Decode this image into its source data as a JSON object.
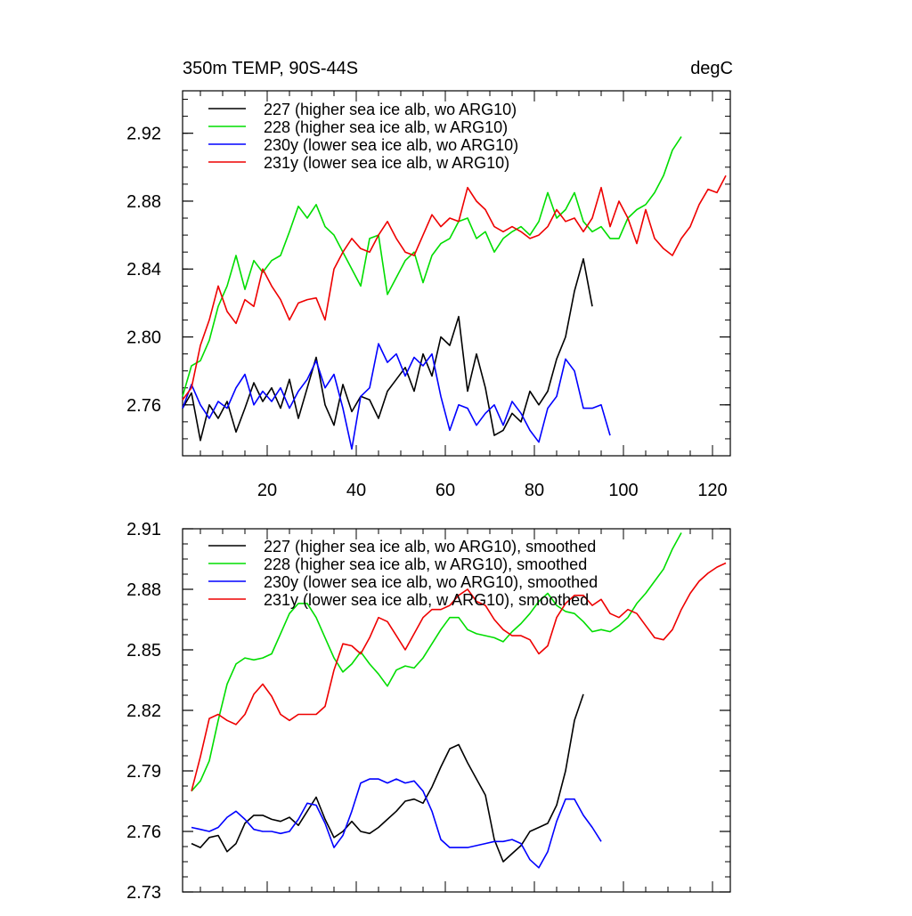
{
  "chart_data": [
    {
      "type": "line",
      "title_left": "350m TEMP, 90S-44S",
      "title_right": "degC",
      "xlim": [
        1,
        124
      ],
      "ylim": [
        2.73,
        2.945
      ],
      "xticks": [
        20,
        40,
        60,
        80,
        100,
        120
      ],
      "xtick_labels": [
        "20",
        "40",
        "60",
        "80",
        "100",
        "120"
      ],
      "yticks": [
        2.76,
        2.8,
        2.84,
        2.88,
        2.92
      ],
      "ytick_labels": [
        "2.76",
        "2.80",
        "2.84",
        "2.88",
        "2.92"
      ],
      "legend_placement": "top-left",
      "series": [
        {
          "name": "227 (higher sea ice alb, wo ARG10)",
          "color": "#000000",
          "x": [
            1,
            3,
            5,
            7,
            9,
            11,
            13,
            15,
            17,
            19,
            21,
            23,
            25,
            27,
            29,
            31,
            33,
            35,
            37,
            39,
            41,
            43,
            45,
            47,
            49,
            51,
            53,
            55,
            57,
            59,
            61,
            63,
            65,
            67,
            69,
            71,
            73,
            75,
            77,
            79,
            81,
            83,
            85,
            87,
            89,
            91,
            93
          ],
          "y": [
            2.758,
            2.767,
            2.739,
            2.76,
            2.752,
            2.762,
            2.744,
            2.758,
            2.773,
            2.762,
            2.77,
            2.758,
            2.775,
            2.752,
            2.77,
            2.788,
            2.76,
            2.748,
            2.772,
            2.756,
            2.765,
            2.763,
            2.752,
            2.768,
            2.775,
            2.782,
            2.768,
            2.79,
            2.777,
            2.8,
            2.795,
            2.812,
            2.768,
            2.79,
            2.77,
            2.742,
            2.745,
            2.755,
            2.75,
            2.768,
            2.76,
            2.768,
            2.787,
            2.8,
            2.827,
            2.846,
            2.818
          ]
        },
        {
          "name": "228 (higher sea ice alb, w ARG10)",
          "color": "#00dd00",
          "x": [
            1,
            3,
            5,
            7,
            9,
            11,
            13,
            15,
            17,
            19,
            21,
            23,
            25,
            27,
            29,
            31,
            33,
            35,
            37,
            39,
            41,
            43,
            45,
            47,
            49,
            51,
            53,
            55,
            57,
            59,
            61,
            63,
            65,
            67,
            69,
            71,
            73,
            75,
            77,
            79,
            81,
            83,
            85,
            87,
            89,
            91,
            93,
            95,
            97,
            99,
            101,
            103,
            105,
            107,
            109,
            111,
            113
          ],
          "y": [
            2.765,
            2.783,
            2.786,
            2.798,
            2.818,
            2.83,
            2.848,
            2.828,
            2.845,
            2.838,
            2.845,
            2.848,
            2.862,
            2.877,
            2.87,
            2.878,
            2.865,
            2.86,
            2.85,
            2.84,
            2.83,
            2.858,
            2.86,
            2.825,
            2.835,
            2.845,
            2.85,
            2.832,
            2.848,
            2.855,
            2.858,
            2.868,
            2.87,
            2.858,
            2.862,
            2.85,
            2.858,
            2.862,
            2.865,
            2.86,
            2.868,
            2.885,
            2.87,
            2.875,
            2.885,
            2.868,
            2.862,
            2.865,
            2.858,
            2.858,
            2.87,
            2.875,
            2.878,
            2.885,
            2.895,
            2.91,
            2.918
          ]
        },
        {
          "name": "230y (lower sea ice alb, wo ARG10)",
          "color": "#0000ff",
          "x": [
            1,
            3,
            5,
            7,
            9,
            11,
            13,
            15,
            17,
            19,
            21,
            23,
            25,
            27,
            29,
            31,
            33,
            35,
            37,
            39,
            41,
            43,
            45,
            47,
            49,
            51,
            53,
            55,
            57,
            59,
            61,
            63,
            65,
            67,
            69,
            71,
            73,
            75,
            77,
            79,
            81,
            83,
            85,
            87,
            89,
            91,
            93,
            95,
            97
          ],
          "y": [
            2.758,
            2.772,
            2.76,
            2.752,
            2.762,
            2.758,
            2.77,
            2.778,
            2.76,
            2.768,
            2.762,
            2.77,
            2.758,
            2.768,
            2.775,
            2.786,
            2.77,
            2.778,
            2.758,
            2.734,
            2.765,
            2.77,
            2.796,
            2.785,
            2.79,
            2.777,
            2.788,
            2.783,
            2.79,
            2.765,
            2.745,
            2.76,
            2.758,
            2.748,
            2.755,
            2.76,
            2.748,
            2.762,
            2.755,
            2.745,
            2.738,
            2.758,
            2.765,
            2.787,
            2.78,
            2.758,
            2.758,
            2.76,
            2.742
          ]
        },
        {
          "name": "231y (lower sea ice alb, w ARG10)",
          "color": "#ee0000",
          "x": [
            1,
            3,
            5,
            7,
            9,
            11,
            13,
            15,
            17,
            19,
            21,
            23,
            25,
            27,
            29,
            31,
            33,
            35,
            37,
            39,
            41,
            43,
            45,
            47,
            49,
            51,
            53,
            55,
            57,
            59,
            61,
            63,
            65,
            67,
            69,
            71,
            73,
            75,
            77,
            79,
            81,
            83,
            85,
            87,
            89,
            91,
            93,
            95,
            97,
            99,
            101,
            103,
            105,
            107,
            109,
            111,
            113,
            115,
            117,
            119,
            121,
            123
          ],
          "y": [
            2.763,
            2.77,
            2.795,
            2.81,
            2.83,
            2.815,
            2.808,
            2.822,
            2.818,
            2.84,
            2.83,
            2.822,
            2.81,
            2.82,
            2.822,
            2.823,
            2.81,
            2.84,
            2.85,
            2.858,
            2.852,
            2.85,
            2.86,
            2.868,
            2.858,
            2.85,
            2.848,
            2.86,
            2.872,
            2.865,
            2.87,
            2.868,
            2.888,
            2.88,
            2.875,
            2.865,
            2.862,
            2.865,
            2.862,
            2.858,
            2.86,
            2.865,
            2.875,
            2.868,
            2.87,
            2.862,
            2.87,
            2.888,
            2.865,
            2.88,
            2.87,
            2.855,
            2.875,
            2.858,
            2.852,
            2.848,
            2.858,
            2.865,
            2.878,
            2.887,
            2.885,
            2.895
          ]
        }
      ]
    },
    {
      "type": "line",
      "xlim": [
        1,
        124
      ],
      "ylim": [
        2.73,
        2.91
      ],
      "xticks": [
        20,
        40,
        60,
        80,
        100,
        120
      ],
      "yticks": [
        2.73,
        2.76,
        2.79,
        2.82,
        2.85,
        2.88,
        2.91
      ],
      "ytick_labels": [
        "2.73",
        "2.76",
        "2.79",
        "2.82",
        "2.85",
        "2.88",
        "2.91"
      ],
      "legend_placement": "top-left",
      "series": [
        {
          "name": "227 (higher sea ice alb, wo ARG10), smoothed",
          "color": "#000000",
          "x": [
            3,
            5,
            7,
            9,
            11,
            13,
            15,
            17,
            19,
            21,
            23,
            25,
            27,
            29,
            31,
            33,
            35,
            37,
            39,
            41,
            43,
            45,
            47,
            49,
            51,
            53,
            55,
            57,
            59,
            61,
            63,
            65,
            67,
            69,
            71,
            73,
            75,
            77,
            79,
            81,
            83,
            85,
            87,
            89,
            91
          ],
          "y": [
            2.754,
            2.752,
            2.757,
            2.758,
            2.75,
            2.754,
            2.764,
            2.768,
            2.768,
            2.766,
            2.765,
            2.767,
            2.763,
            2.77,
            2.777,
            2.766,
            2.757,
            2.76,
            2.765,
            2.76,
            2.759,
            2.762,
            2.766,
            2.77,
            2.775,
            2.776,
            2.774,
            2.782,
            2.792,
            2.801,
            2.803,
            2.794,
            2.786,
            2.778,
            2.756,
            2.745,
            2.749,
            2.753,
            2.76,
            2.762,
            2.764,
            2.773,
            2.79,
            2.815,
            2.828
          ]
        },
        {
          "name": "228 (higher sea ice alb, w ARG10), smoothed",
          "color": "#00dd00",
          "x": [
            3,
            5,
            7,
            9,
            11,
            13,
            15,
            17,
            19,
            21,
            23,
            25,
            27,
            29,
            31,
            33,
            35,
            37,
            39,
            41,
            43,
            45,
            47,
            49,
            51,
            53,
            55,
            57,
            59,
            61,
            63,
            65,
            67,
            69,
            71,
            73,
            75,
            77,
            79,
            81,
            83,
            85,
            87,
            89,
            91,
            93,
            95,
            97,
            99,
            101,
            103,
            105,
            107,
            109,
            111,
            113
          ],
          "y": [
            2.78,
            2.785,
            2.795,
            2.815,
            2.833,
            2.843,
            2.846,
            2.845,
            2.846,
            2.848,
            2.858,
            2.868,
            2.873,
            2.873,
            2.866,
            2.856,
            2.846,
            2.839,
            2.843,
            2.849,
            2.843,
            2.838,
            2.832,
            2.84,
            2.842,
            2.841,
            2.846,
            2.853,
            2.86,
            2.866,
            2.866,
            2.86,
            2.858,
            2.857,
            2.856,
            2.854,
            2.859,
            2.863,
            2.868,
            2.874,
            2.878,
            2.872,
            2.869,
            2.868,
            2.864,
            2.859,
            2.86,
            2.859,
            2.862,
            2.866,
            2.873,
            2.878,
            2.884,
            2.89,
            2.9,
            2.908
          ]
        },
        {
          "name": "230y (lower sea ice alb, wo ARG10), smoothed",
          "color": "#0000ff",
          "x": [
            3,
            5,
            7,
            9,
            11,
            13,
            15,
            17,
            19,
            21,
            23,
            25,
            27,
            29,
            31,
            33,
            35,
            37,
            39,
            41,
            43,
            45,
            47,
            49,
            51,
            53,
            55,
            57,
            59,
            61,
            63,
            65,
            67,
            69,
            71,
            73,
            75,
            77,
            79,
            81,
            83,
            85,
            87,
            89,
            91,
            93,
            95
          ],
          "y": [
            2.762,
            2.761,
            2.76,
            2.762,
            2.767,
            2.77,
            2.766,
            2.761,
            2.76,
            2.76,
            2.759,
            2.76,
            2.766,
            2.774,
            2.773,
            2.764,
            2.752,
            2.758,
            2.77,
            2.784,
            2.786,
            2.786,
            2.784,
            2.786,
            2.784,
            2.785,
            2.78,
            2.77,
            2.756,
            2.752,
            2.752,
            2.752,
            2.753,
            2.754,
            2.755,
            2.755,
            2.756,
            2.754,
            2.746,
            2.742,
            2.75,
            2.765,
            2.776,
            2.776,
            2.768,
            2.762,
            2.755
          ]
        },
        {
          "name": "231y (lower sea ice alb, w ARG10), smoothed",
          "color": "#ee0000",
          "x": [
            3,
            5,
            7,
            9,
            11,
            13,
            15,
            17,
            19,
            21,
            23,
            25,
            27,
            29,
            31,
            33,
            35,
            37,
            39,
            41,
            43,
            45,
            47,
            49,
            51,
            53,
            55,
            57,
            59,
            61,
            63,
            65,
            67,
            69,
            71,
            73,
            75,
            77,
            79,
            81,
            83,
            85,
            87,
            89,
            91,
            93,
            95,
            97,
            99,
            101,
            103,
            105,
            107,
            109,
            111,
            113,
            115,
            117,
            119,
            121,
            123
          ],
          "y": [
            2.78,
            2.797,
            2.816,
            2.818,
            2.815,
            2.813,
            2.818,
            2.828,
            2.833,
            2.827,
            2.818,
            2.815,
            2.818,
            2.818,
            2.818,
            2.822,
            2.84,
            2.853,
            2.852,
            2.848,
            2.856,
            2.866,
            2.864,
            2.857,
            2.85,
            2.858,
            2.866,
            2.87,
            2.87,
            2.872,
            2.877,
            2.88,
            2.874,
            2.872,
            2.865,
            2.86,
            2.857,
            2.857,
            2.855,
            2.848,
            2.852,
            2.866,
            2.873,
            2.877,
            2.877,
            2.872,
            2.875,
            2.868,
            2.866,
            2.87,
            2.868,
            2.862,
            2.856,
            2.855,
            2.86,
            2.87,
            2.878,
            2.884,
            2.888,
            2.891,
            2.893
          ]
        }
      ]
    }
  ]
}
